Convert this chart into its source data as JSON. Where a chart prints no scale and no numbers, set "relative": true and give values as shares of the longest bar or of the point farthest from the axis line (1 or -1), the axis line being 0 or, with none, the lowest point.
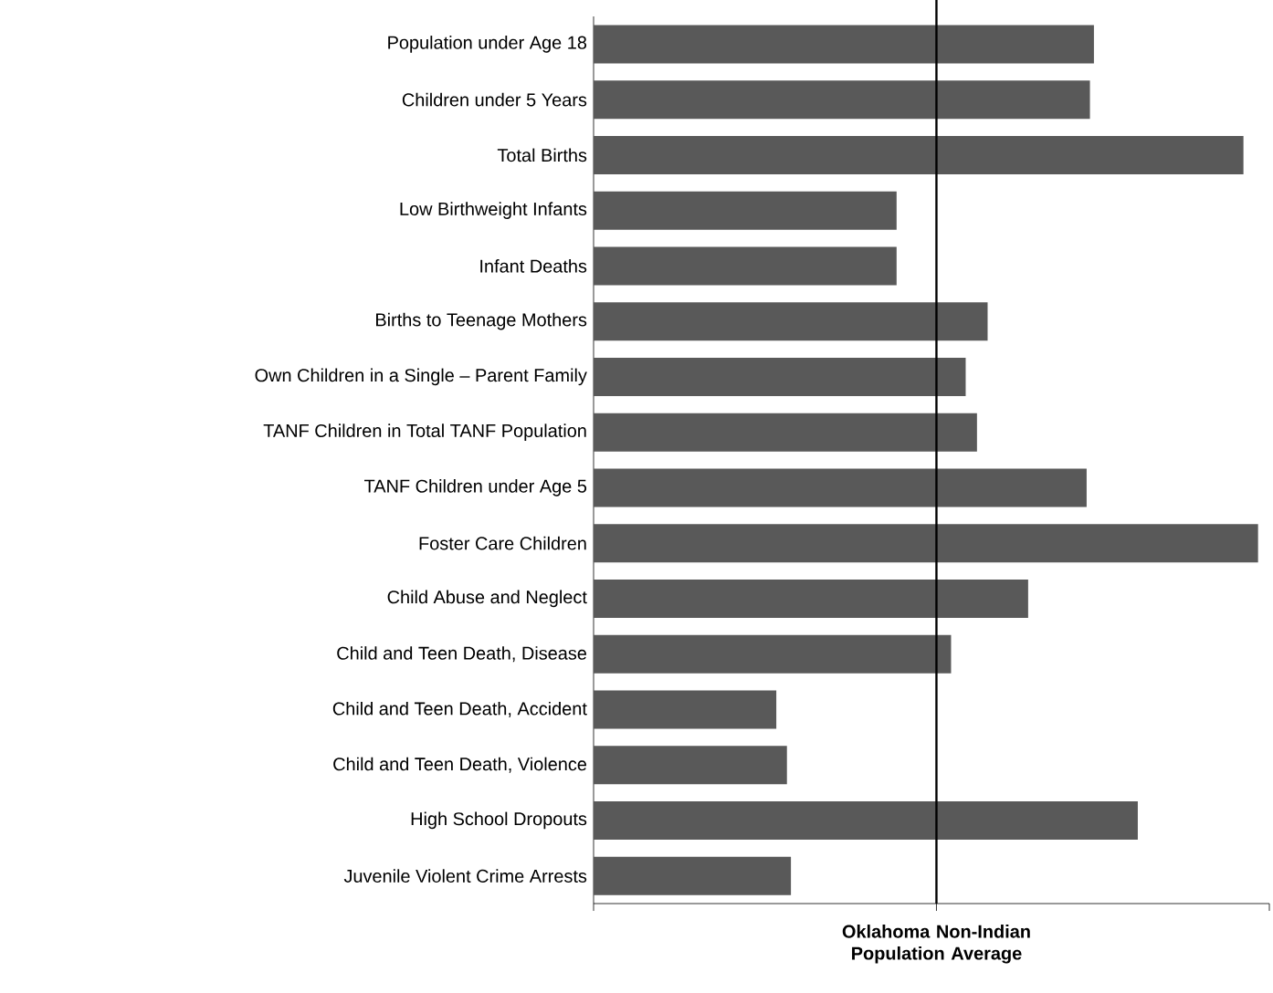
{
  "chart_data": {
    "type": "bar",
    "orientation": "horizontal",
    "relative": true,
    "color": "#595959",
    "categories": [
      "Population under Age 18",
      "Children under 5 Years",
      "Total Births",
      "Low Birthweight Infants",
      "Infant Deaths",
      "Births to Teenage Mothers",
      "Own Children in a Single – Parent Family",
      "TANF Children in Total TANF Population",
      "TANF Children under Age 5",
      "Foster Care Children",
      "Child Abuse and Neglect",
      "Child and Teen Death, Disease",
      "Child and Teen Death, Accident",
      "Child and Teen Death, Violence",
      "High School Dropouts",
      "Juvenile Violent Crime Arrests"
    ],
    "values": [
      0.753,
      0.747,
      0.978,
      0.456,
      0.456,
      0.593,
      0.56,
      0.577,
      0.742,
      1,
      0.654,
      0.538,
      0.275,
      0.291,
      0.819,
      0.297
    ],
    "ref_lines": [
      {
        "axis": "x",
        "value": 0.516,
        "label": "Oklahoma Non-Indian Population Average",
        "color": "#000000"
      }
    ]
  }
}
